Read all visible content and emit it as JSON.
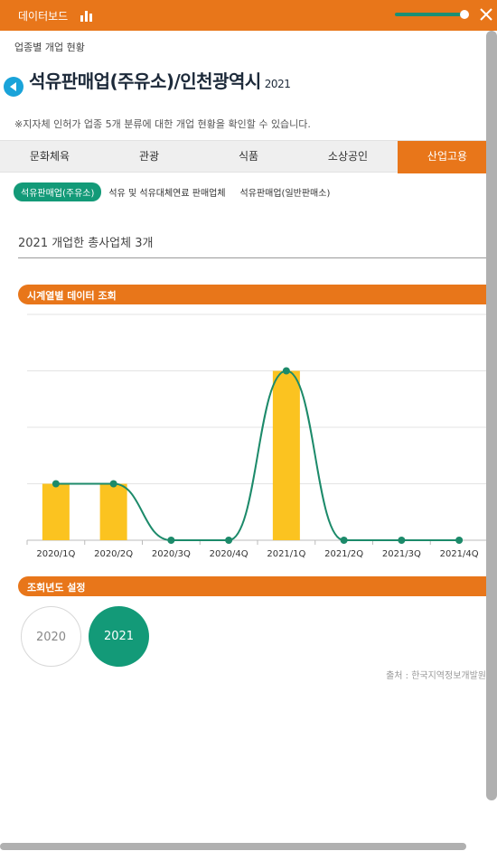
{
  "topbar": {
    "title": "데이터보드",
    "chart_icon": "bar-chart-icon",
    "close_icon": "close-icon",
    "slider_level": 0.9,
    "accent_color": "#e8761a",
    "green_color": "#139a78"
  },
  "breadcrumb": "업종별 개업 현황",
  "header": {
    "title": "석유판매업(주유소)/인천광역시",
    "year": "2021"
  },
  "notice": "※지자체 인허가 업종 5개 분류에 대한 개업 현황을 확인할 수 있습니다.",
  "tabs": [
    {
      "label": "문화체육"
    },
    {
      "label": "관광"
    },
    {
      "label": "식품"
    },
    {
      "label": "소상공인"
    },
    {
      "label": "산업고용"
    }
  ],
  "active_tab": 4,
  "subtabs": [
    {
      "label": "석유판매업(주유소)"
    },
    {
      "label": "석유 및 석유대체연료 판매업체"
    },
    {
      "label": "석유판매업(일반판매소)"
    }
  ],
  "summary": "2021 개업한 총사업체 3개",
  "sections": {
    "timeseries": "시계열별 데이터 조회",
    "year_select": "조회년도 설정"
  },
  "chart_data": {
    "type": "bar",
    "categories": [
      "2020/1Q",
      "2020/2Q",
      "2020/3Q",
      "2020/4Q",
      "2021/1Q",
      "2021/2Q",
      "2021/3Q",
      "2021/4Q"
    ],
    "series": [
      {
        "values": [
          1,
          1,
          0,
          0,
          3,
          0,
          0,
          0
        ],
        "color": "#fbc320"
      },
      {
        "values": [
          1,
          1,
          0,
          0,
          3,
          0,
          0,
          0
        ],
        "color": "#1c8a6a"
      }
    ],
    "ylim": [
      0,
      4
    ],
    "grid": true
  },
  "years": [
    {
      "label": "2020"
    },
    {
      "label": "2021"
    }
  ],
  "selected_year": "2021",
  "source": "출처 : 한국지역정보개발원"
}
